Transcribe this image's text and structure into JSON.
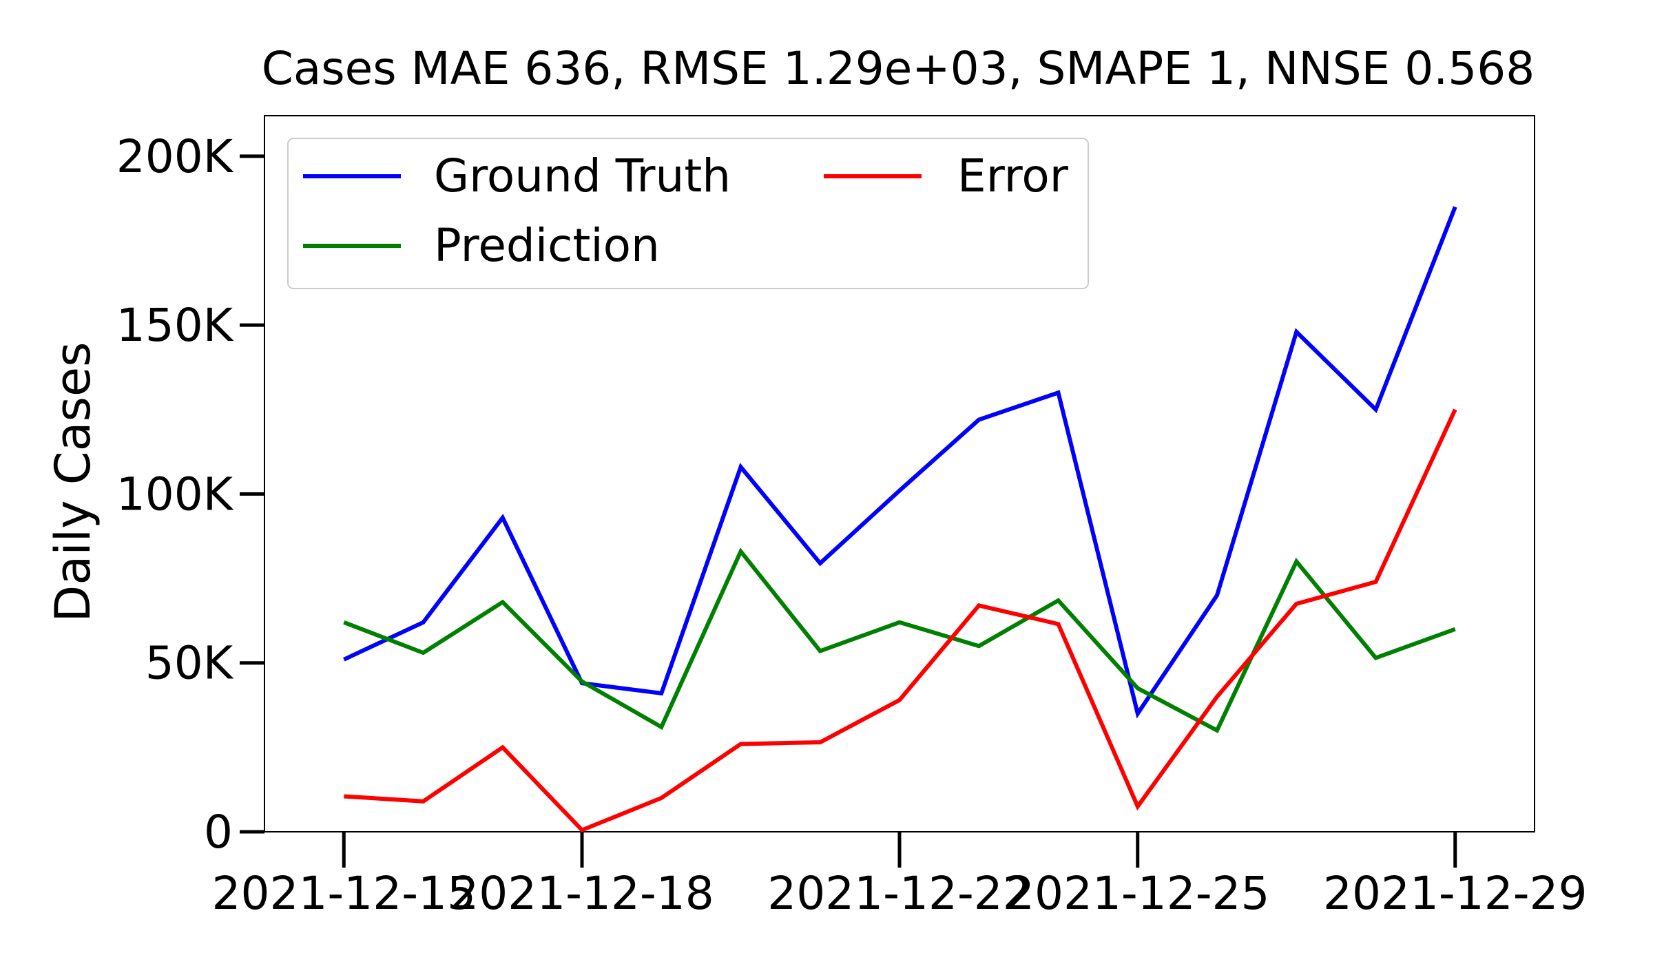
{
  "chart_data": {
    "type": "line",
    "title": "Cases MAE 636, RMSE 1.29e+03, SMAPE 1, NNSE 0.568",
    "xlabel": "",
    "ylabel": "Daily Cases",
    "x": [
      "2021-12-15",
      "2021-12-16",
      "2021-12-17",
      "2021-12-18",
      "2021-12-19",
      "2021-12-20",
      "2021-12-21",
      "2021-12-22",
      "2021-12-23",
      "2021-12-24",
      "2021-12-25",
      "2021-12-26",
      "2021-12-27",
      "2021-12-28",
      "2021-12-29"
    ],
    "xlim": [
      "2021-12-14",
      "2021-12-30"
    ],
    "ylim": [
      0,
      212000
    ],
    "x_ticks": [
      "2021-12-15",
      "2021-12-18",
      "2021-12-22",
      "2021-12-25",
      "2021-12-29"
    ],
    "y_ticks": [
      0,
      50000,
      100000,
      150000,
      200000
    ],
    "y_tick_labels": [
      "0",
      "50K",
      "100K",
      "150K",
      "200K"
    ],
    "grid": false,
    "legend_position": "upper-left",
    "series": [
      {
        "name": "Ground Truth",
        "color": "#0000ff",
        "values": [
          51000,
          62000,
          93000,
          44000,
          41000,
          108000,
          79500,
          101000,
          122000,
          130000,
          35000,
          70000,
          148000,
          125000,
          185000
        ]
      },
      {
        "name": "Prediction",
        "color": "#008000",
        "values": [
          62000,
          53000,
          68000,
          44500,
          31000,
          83000,
          53500,
          62000,
          55000,
          68500,
          42500,
          30000,
          80000,
          51500,
          60000
        ]
      },
      {
        "name": "Error",
        "color": "#ff0000",
        "values": [
          10500,
          9000,
          25000,
          500,
          10000,
          26000,
          26500,
          39000,
          67000,
          61500,
          7500,
          40000,
          67500,
          74000,
          125000
        ]
      }
    ]
  }
}
